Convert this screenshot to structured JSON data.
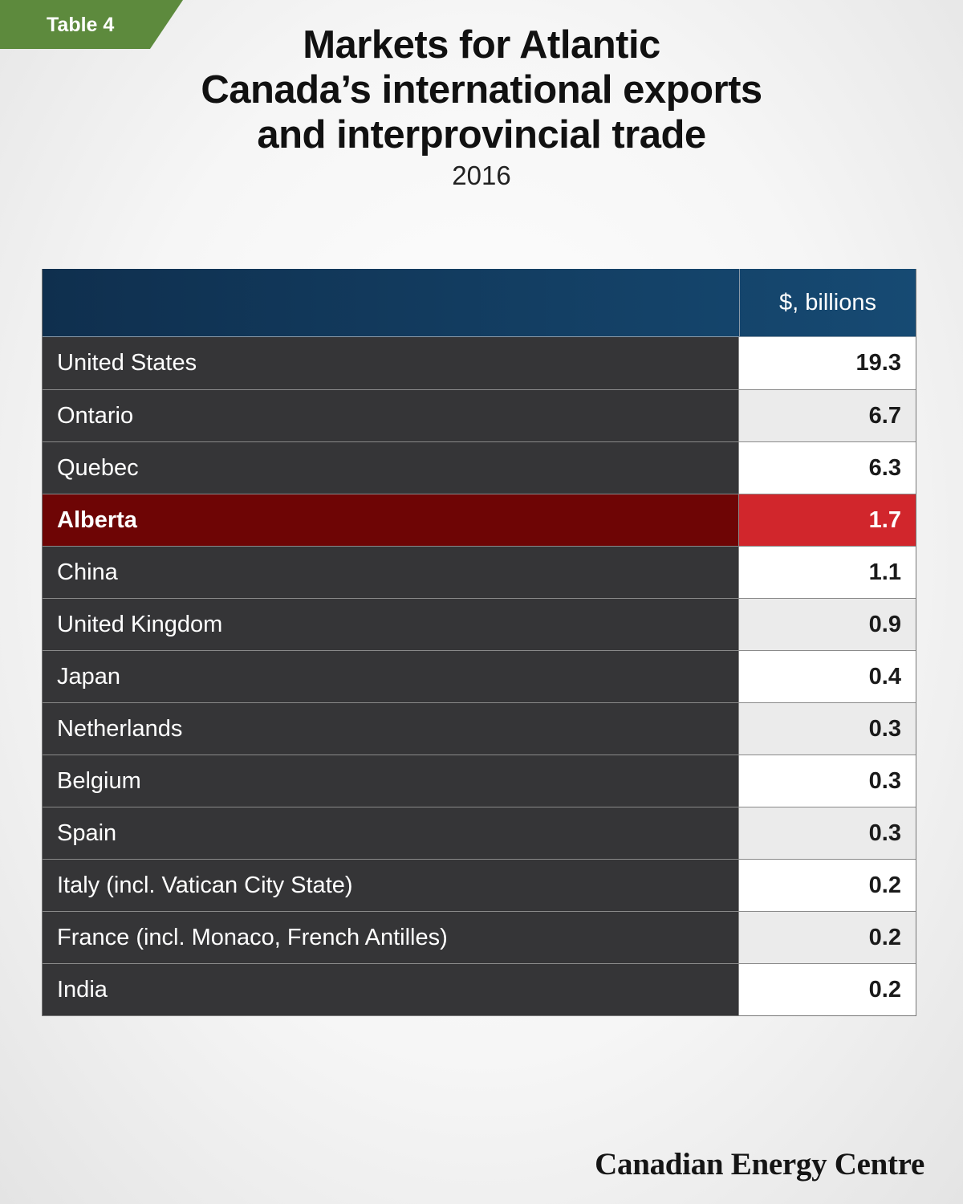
{
  "tag": "Table 4",
  "title_lines": [
    "Markets for Atlantic",
    "Canada’s international exports",
    "and interprovincial trade"
  ],
  "subtitle": "2016",
  "brand": "Canadian Energy Centre",
  "colors": {
    "highlight_name": "#6e0505",
    "highlight_value": "#d1262c",
    "header": "#0f2f4e",
    "row_name": "#353537",
    "tag": "#5d8a3d"
  },
  "chart_data": {
    "type": "table",
    "columns": [
      "",
      "$, billions"
    ],
    "highlight": "Alberta",
    "rows": [
      {
        "name": "United States",
        "value": "19.3"
      },
      {
        "name": "Ontario",
        "value": "6.7"
      },
      {
        "name": "Quebec",
        "value": "6.3"
      },
      {
        "name": "Alberta",
        "value": "1.7"
      },
      {
        "name": "China",
        "value": "1.1"
      },
      {
        "name": "United Kingdom",
        "value": "0.9"
      },
      {
        "name": "Japan",
        "value": "0.4"
      },
      {
        "name": "Netherlands",
        "value": "0.3"
      },
      {
        "name": "Belgium",
        "value": "0.3"
      },
      {
        "name": "Spain",
        "value": "0.3"
      },
      {
        "name": "Italy (incl. Vatican City State)",
        "value": "0.2"
      },
      {
        "name": "France (incl. Monaco, French Antilles)",
        "value": "0.2"
      },
      {
        "name": "India",
        "value": "0.2"
      }
    ]
  }
}
